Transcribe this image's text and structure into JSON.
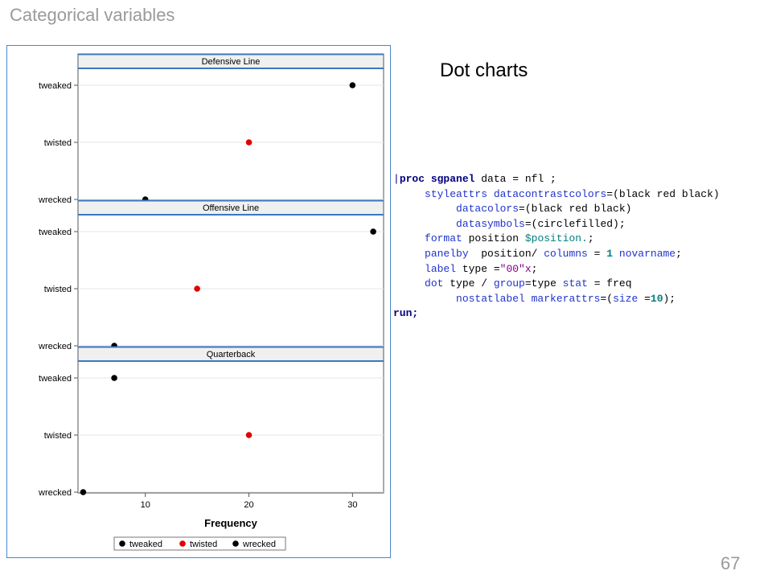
{
  "slide": {
    "title": "Categorical variables",
    "subtitle": "Dot charts",
    "page_number": "67"
  },
  "chart_data": {
    "type": "scatter",
    "panels": [
      {
        "title": "Defensive Line",
        "points": [
          {
            "category": "tweaked",
            "value": 30
          },
          {
            "category": "twisted",
            "value": 20
          },
          {
            "category": "wrecked",
            "value": 10
          }
        ]
      },
      {
        "title": "Offensive Line",
        "points": [
          {
            "category": "tweaked",
            "value": 32
          },
          {
            "category": "twisted",
            "value": 15
          },
          {
            "category": "wrecked",
            "value": 7
          }
        ]
      },
      {
        "title": "Quarterback",
        "points": [
          {
            "category": "tweaked",
            "value": 7
          },
          {
            "category": "twisted",
            "value": 20
          },
          {
            "category": "wrecked",
            "value": 4
          }
        ]
      }
    ],
    "categories": [
      "tweaked",
      "twisted",
      "wrecked"
    ],
    "xlabel": "Frequency",
    "xticks": [
      10,
      20,
      30
    ],
    "xlim": [
      3.5,
      33
    ],
    "legend": {
      "placement": "bottom",
      "entries": [
        {
          "label": "tweaked",
          "color": "#000000"
        },
        {
          "label": "twisted",
          "color": "#e00000"
        },
        {
          "label": "wrecked",
          "color": "#000000"
        }
      ]
    },
    "colors": {
      "tweaked": "#000000",
      "twisted": "#e00000",
      "wrecked": "#000000"
    }
  },
  "code": {
    "l1_kw": "proc sgpanel",
    "l1_rest": " data = nfl ;",
    "l2_kw": "styleattrs datacontrastcolors",
    "l2_rest": "=(black red black)",
    "l3_kw": "datacolors",
    "l3_rest": "=(black red black)",
    "l4_kw": "datasymbols",
    "l4_rest": "=(circlefilled);",
    "l5_kw": "format",
    "l5_mid": " position ",
    "l5_fmt": "$position.",
    "l5_end": ";",
    "l6_kw": "panelby",
    "l6_mid": "  position/ ",
    "l6_kw2": "columns",
    "l6_mid2": " = ",
    "l6_num": "1",
    "l6_sp": " ",
    "l6_kw3": "novarname",
    "l6_end": ";",
    "l7_kw": "label",
    "l7_mid": " type =",
    "l7_str": "\"00\"x",
    "l7_end": ";",
    "l8_kw": "dot",
    "l8_mid": " type / ",
    "l8_kw2": "group",
    "l8_mid2": "=type ",
    "l8_kw3": "stat",
    "l8_end": " = freq",
    "l9_kw": "nostatlabel markerattrs",
    "l9_mid": "=(",
    "l9_kw2": "size",
    "l9_mid2": " =",
    "l9_num": "10",
    "l9_end": ");",
    "l10_kw": "run;"
  }
}
